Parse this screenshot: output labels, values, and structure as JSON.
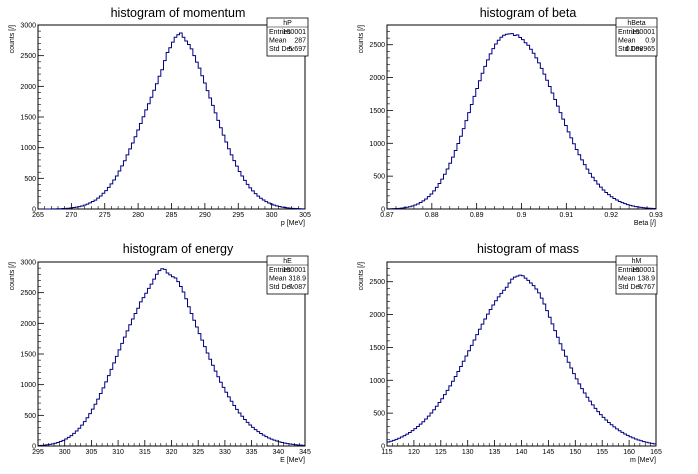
{
  "chart_data": [
    {
      "type": "bar",
      "title": "histogram of momentum",
      "xlabel": "p [MeV]",
      "ylabel": "counts [/]",
      "xlim": [
        265,
        305
      ],
      "ylim": [
        0,
        3000
      ],
      "xticks": [
        265,
        270,
        275,
        280,
        285,
        290,
        295,
        300,
        305
      ],
      "yticks": [
        0,
        500,
        1000,
        1500,
        2000,
        2500,
        3000
      ],
      "stats": {
        "name": "hP",
        "rows": [
          {
            "label": "Entries",
            "value": "100001"
          },
          {
            "label": "Mean",
            "value": "287"
          },
          {
            "label": "Std Dev",
            "value": "5.697"
          }
        ]
      },
      "bins": 100,
      "values": [
        0,
        0,
        0,
        1,
        1,
        2,
        3,
        4,
        5,
        8,
        10,
        13,
        18,
        25,
        30,
        39,
        49,
        64,
        79,
        99,
        122,
        145,
        177,
        213,
        256,
        300,
        352,
        410,
        472,
        539,
        620,
        704,
        787,
        882,
        980,
        1076,
        1179,
        1289,
        1394,
        1505,
        1617,
        1717,
        1823,
        1937,
        2042,
        2165,
        2270,
        2420,
        2552,
        2630,
        2720,
        2800,
        2840,
        2870,
        2800,
        2740,
        2682,
        2610,
        2500,
        2395,
        2297,
        2173,
        2054,
        1930,
        1810,
        1690,
        1568,
        1444,
        1324,
        1204,
        1092,
        982,
        883,
        788,
        700,
        612,
        537,
        466,
        402,
        345,
        295,
        250,
        210,
        176,
        146,
        120,
        98,
        79,
        63,
        50,
        40,
        31,
        24,
        18,
        14,
        10,
        8,
        6,
        4,
        3
      ]
    },
    {
      "type": "bar",
      "title": "histogram of beta",
      "xlabel": "Beta [/]",
      "ylabel": "counts [/]",
      "xlim": [
        0.87,
        0.93
      ],
      "ylim": [
        0,
        2800
      ],
      "xticks": [
        0.87,
        0.88,
        0.89,
        0.9,
        0.91,
        0.92,
        0.93
      ],
      "yticks": [
        0,
        500,
        1000,
        1500,
        2000,
        2500
      ],
      "stats": {
        "name": "hBeta",
        "rows": [
          {
            "label": "Entries",
            "value": "100001"
          },
          {
            "label": "Mean",
            "value": "0.9"
          },
          {
            "label": "Std Dev",
            "value": "0.008965"
          }
        ]
      },
      "bins": 100,
      "values": [
        2,
        3,
        5,
        7,
        10,
        14,
        19,
        26,
        35,
        46,
        60,
        77,
        98,
        123,
        153,
        188,
        229,
        276,
        329,
        389,
        455,
        528,
        609,
        696,
        790,
        890,
        996,
        1108,
        1224,
        1344,
        1467,
        1590,
        1713,
        1834,
        1952,
        2065,
        2171,
        2270,
        2360,
        2440,
        2510,
        2567,
        2613,
        2645,
        2660,
        2665,
        2668,
        2640,
        2650,
        2610,
        2577,
        2530,
        2492,
        2430,
        2370,
        2300,
        2224,
        2140,
        2052,
        1960,
        1864,
        1766,
        1667,
        1566,
        1466,
        1367,
        1270,
        1174,
        1082,
        992,
        906,
        825,
        748,
        675,
        607,
        543,
        484,
        429,
        379,
        332,
        290,
        252,
        218,
        187,
        160,
        136,
        115,
        97,
        81,
        67,
        55,
        45,
        37,
        30,
        24,
        19,
        15,
        12,
        9,
        7
      ]
    },
    {
      "type": "bar",
      "title": "histogram of energy",
      "xlabel": "E [MeV]",
      "ylabel": "counts [/]",
      "xlim": [
        295,
        345
      ],
      "ylim": [
        0,
        3000
      ],
      "xticks": [
        295,
        300,
        305,
        310,
        315,
        320,
        325,
        330,
        335,
        340,
        345
      ],
      "yticks": [
        0,
        500,
        1000,
        1500,
        2000,
        2500,
        3000
      ],
      "stats": {
        "name": "hE",
        "rows": [
          {
            "label": "Entries",
            "value": "100001"
          },
          {
            "label": "Mean",
            "value": "318.9"
          },
          {
            "label": "Std Dev",
            "value": "7.087"
          }
        ]
      },
      "bins": 100,
      "values": [
        8,
        11,
        15,
        20,
        27,
        35,
        45,
        58,
        73,
        92,
        114,
        140,
        170,
        205,
        245,
        290,
        341,
        397,
        460,
        528,
        601,
        681,
        765,
        855,
        948,
        1046,
        1147,
        1250,
        1355,
        1461,
        1568,
        1673,
        1776,
        1877,
        1976,
        2070,
        2160,
        2245,
        2350,
        2420,
        2490,
        2570,
        2640,
        2720,
        2800,
        2860,
        2890,
        2880,
        2820,
        2790,
        2760,
        2740,
        2680,
        2600,
        2510,
        2400,
        2270,
        2160,
        2050,
        1940,
        1832,
        1726,
        1620,
        1516,
        1414,
        1316,
        1220,
        1129,
        1040,
        956,
        876,
        800,
        729,
        661,
        598,
        539,
        484,
        433,
        386,
        343,
        303,
        267,
        234,
        204,
        177,
        153,
        131,
        112,
        95,
        81,
        68,
        57,
        47,
        39,
        32,
        26,
        21,
        17,
        14,
        11
      ]
    },
    {
      "type": "bar",
      "title": "histogram of mass",
      "xlabel": "m [MeV]",
      "ylabel": "counts [/]",
      "xlim": [
        115,
        165
      ],
      "ylim": [
        0,
        2800
      ],
      "xticks": [
        115,
        120,
        125,
        130,
        135,
        140,
        145,
        150,
        155,
        160,
        165
      ],
      "yticks": [
        0,
        500,
        1000,
        1500,
        2000,
        2500
      ],
      "stats": {
        "name": "hM",
        "rows": [
          {
            "label": "Entries",
            "value": "100001"
          },
          {
            "label": "Mean",
            "value": "138.9"
          },
          {
            "label": "Std Dev",
            "value": "7.767"
          }
        ]
      },
      "bins": 100,
      "values": [
        60,
        72,
        86,
        101,
        118,
        137,
        158,
        181,
        206,
        234,
        264,
        297,
        332,
        370,
        411,
        455,
        502,
        552,
        605,
        661,
        720,
        782,
        847,
        915,
        985,
        1058,
        1133,
        1210,
        1289,
        1369,
        1450,
        1532,
        1614,
        1695,
        1776,
        1855,
        1932,
        2007,
        2078,
        2146,
        2210,
        2269,
        2322,
        2370,
        2415,
        2480,
        2540,
        2570,
        2585,
        2600,
        2590,
        2555,
        2520,
        2480,
        2440,
        2390,
        2330,
        2250,
        2160,
        2060,
        1960,
        1858,
        1756,
        1655,
        1556,
        1459,
        1365,
        1274,
        1186,
        1102,
        1022,
        946,
        874,
        806,
        742,
        682,
        626,
        573,
        524,
        478,
        435,
        395,
        358,
        323,
        291,
        261,
        233,
        207,
        183,
        161,
        141,
        123,
        107,
        92,
        79,
        67,
        57,
        48,
        40,
        33
      ]
    }
  ]
}
